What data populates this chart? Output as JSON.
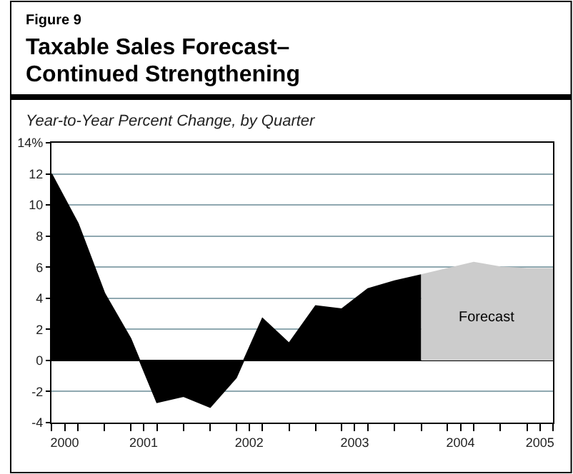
{
  "chart_data": {
    "type": "area",
    "title": "Taxable Sales Forecast–\nContinued Strengthening",
    "subtitle": "Year-to-Year Percent Change, by Quarter",
    "annotations": [
      "Figure 9",
      "Forecast"
    ],
    "x": [
      "2000-07",
      "2000-10",
      "2001-01",
      "2001-04",
      "2001-07",
      "2001-10",
      "2002-01",
      "2002-04",
      "2002-07",
      "2002-10",
      "2003-01",
      "2003-04",
      "2003-07",
      "2003-10",
      "2004-01",
      "2004-04",
      "2004-07",
      "2004-10",
      "2005-01",
      "2005-04"
    ],
    "series": [
      {
        "color": "#000000",
        "values": [
          12.0,
          8.8,
          4.3,
          1.4,
          -2.7,
          -2.3,
          -3.0,
          -1.1,
          2.7,
          1.1,
          3.5,
          3.3,
          4.6,
          5.1,
          5.5,
          null,
          null,
          null,
          null,
          null
        ]
      },
      {
        "color": "#cccccc",
        "values": [
          null,
          null,
          null,
          null,
          null,
          null,
          null,
          null,
          null,
          null,
          null,
          null,
          null,
          null,
          5.5,
          5.9,
          6.3,
          6.0,
          5.9,
          5.9
        ]
      }
    ],
    "xlim": [
      "2000-07",
      "2005-04"
    ],
    "xticks": [
      {
        "value": "2000-07",
        "label": null
      },
      {
        "value": "2000-10",
        "label": null
      },
      {
        "value": "2001-01",
        "label": null
      },
      {
        "value": "2001-04",
        "label": null
      },
      {
        "value": "2001-07",
        "label": null
      },
      {
        "value": "2001-10",
        "label": null
      },
      {
        "value": "2002-01",
        "label": null
      },
      {
        "value": "2002-04",
        "label": null
      },
      {
        "value": "2002-07",
        "label": null
      },
      {
        "value": "2002-10",
        "label": null
      },
      {
        "value": "2003-01",
        "label": null
      },
      {
        "value": "2003-04",
        "label": null
      },
      {
        "value": "2003-07",
        "label": null
      },
      {
        "value": "2003-10",
        "label": null
      },
      {
        "value": "2004-01",
        "label": null
      },
      {
        "value": "2004-04",
        "label": null
      },
      {
        "value": "2004-07",
        "label": null
      },
      {
        "value": "2004-10",
        "label": null
      },
      {
        "value": "2005-01",
        "label": null
      },
      {
        "value": "2005-04",
        "label": null
      },
      {
        "value": "2000-08-16",
        "label": "2000"
      },
      {
        "value": "2001-05-16",
        "label": "2001"
      },
      {
        "value": "2002-05-16",
        "label": "2002"
      },
      {
        "value": "2003-05-16",
        "label": "2003"
      },
      {
        "value": "2004-05-16",
        "label": "2004"
      },
      {
        "value": "2005-02-15",
        "label": "2005"
      }
    ],
    "ylim": [
      -4,
      14
    ],
    "yticks": [
      -4,
      -2,
      0,
      2,
      4,
      6,
      8,
      10,
      12,
      {
        "value": 14,
        "label": "14%"
      }
    ],
    "grid": "y"
  }
}
